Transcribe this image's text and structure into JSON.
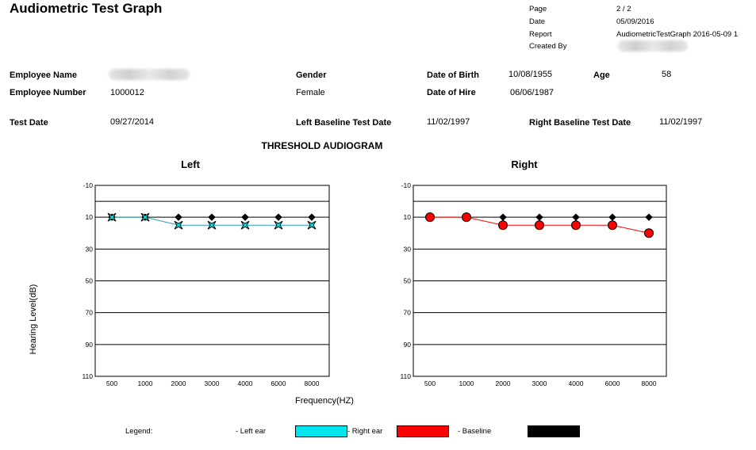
{
  "header": {
    "title": "Audiometric Test Graph",
    "page_label": "Page",
    "page_value": "2  /  2",
    "date_label": "Date",
    "date_value": "05/09/2016",
    "report_label": "Report",
    "report_value": "AudiometricTestGraph 2016-05-09 1",
    "created_by_label": "Created By"
  },
  "employee": {
    "name_label": "Employee Name",
    "number_label": "Employee Number",
    "number_value": "1000012",
    "gender_label": "Gender",
    "gender_value": "Female",
    "dob_label": "Date of Birth",
    "dob_value": "10/08/1955",
    "age_label": "Age",
    "age_value": "58",
    "hire_label": "Date of Hire",
    "hire_value": "06/06/1987",
    "test_date_label": "Test Date",
    "test_date_value": "09/27/2014",
    "left_baseline_label": "Left Baseline Test Date",
    "left_baseline_value": "11/02/1997",
    "right_baseline_label": "Right Baseline Test Date",
    "right_baseline_value": "11/02/1997"
  },
  "section_title": "THRESHOLD AUDIOGRAM",
  "axis": {
    "ylabel": "Hearing Level(dB)",
    "xlabel": "Frequency(HZ)"
  },
  "legend": {
    "label": "Legend:",
    "left_ear": "- Left ear",
    "right_ear": "- Right ear",
    "baseline": "- Baseline"
  },
  "colors": {
    "left_ear": "#00e5ee",
    "right_ear": "#ff0000",
    "baseline": "#000000"
  },
  "chart_data": [
    {
      "type": "line",
      "title": "Left",
      "categories": [
        "500",
        "1000",
        "2000",
        "3000",
        "4000",
        "6000",
        "8000"
      ],
      "ylim": [
        -10,
        110
      ],
      "yticks": [
        -10,
        10,
        30,
        50,
        70,
        90,
        110
      ],
      "y_inverted": true,
      "grid": true,
      "series": [
        {
          "name": "Left ear",
          "marker": "x-star",
          "color": "#00e5ee",
          "values": [
            10,
            10,
            15,
            15,
            15,
            15,
            15
          ]
        },
        {
          "name": "Baseline",
          "marker": "diamond",
          "color": "#000000",
          "values": [
            10,
            10,
            10,
            10,
            10,
            10,
            10
          ]
        }
      ]
    },
    {
      "type": "line",
      "title": "Right",
      "categories": [
        "500",
        "1000",
        "2000",
        "3000",
        "4000",
        "6000",
        "8000"
      ],
      "ylim": [
        -10,
        110
      ],
      "yticks": [
        -10,
        10,
        30,
        50,
        70,
        90,
        110
      ],
      "y_inverted": true,
      "grid": true,
      "series": [
        {
          "name": "Right ear",
          "marker": "circle",
          "color": "#ff0000",
          "values": [
            10,
            10,
            15,
            15,
            15,
            15,
            20
          ]
        },
        {
          "name": "Baseline",
          "marker": "diamond",
          "color": "#000000",
          "values": [
            10,
            10,
            10,
            10,
            10,
            10,
            10
          ]
        }
      ]
    }
  ]
}
